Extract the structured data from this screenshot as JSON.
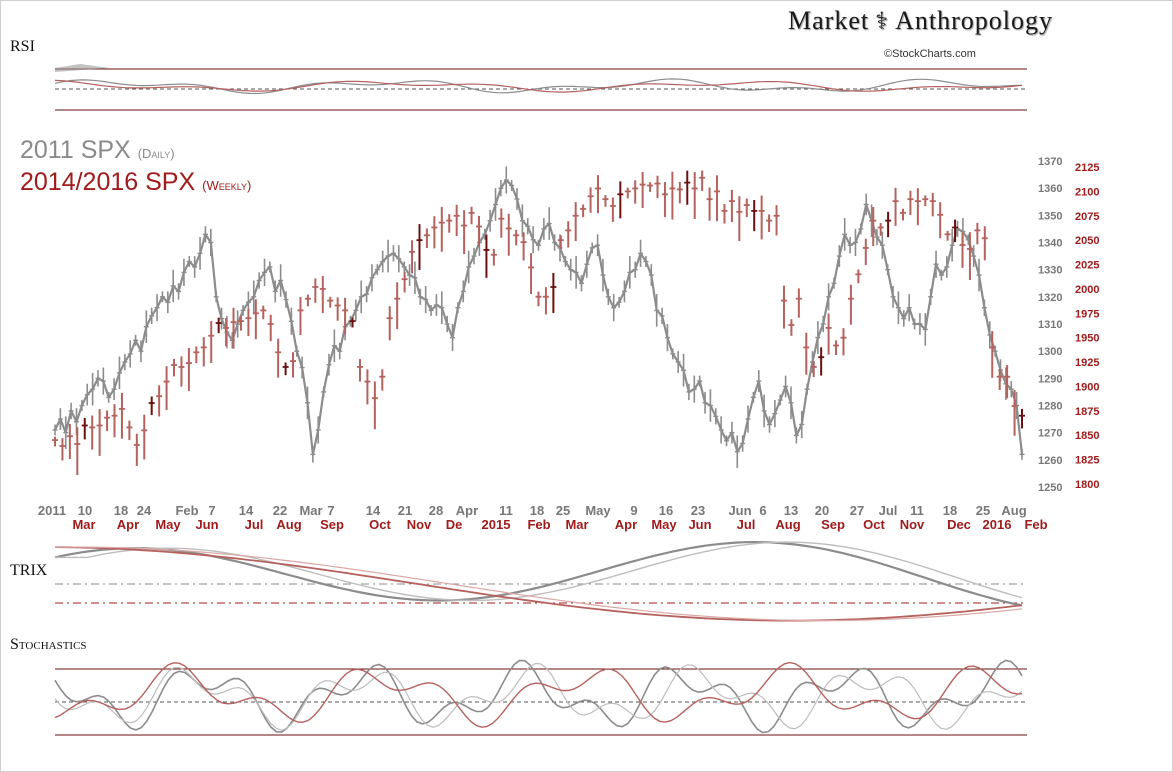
{
  "header": {
    "brand_left": "Market",
    "brand_right": "Anthropology",
    "credit": "©StockCharts.com"
  },
  "panels": {
    "rsi": "RSI",
    "trix": "TRIX",
    "stochastics": "Stochastics"
  },
  "legend": {
    "series_2011": "2011 SPX",
    "series_2011_freq": "(Daily)",
    "series_2014": "2014/2016 SPX",
    "series_2014_freq": "(Weekly)"
  },
  "colors": {
    "gray": "#8c8c8c",
    "red": "#b5625e",
    "dark_red": "#6b1010",
    "axis_red": "#a01c1c"
  },
  "chart_data": {
    "type": "line",
    "y_left": {
      "label": "2011 SPX",
      "range": [
        1250,
        1370
      ],
      "ticks": [
        1370,
        1360,
        1350,
        1340,
        1330,
        1320,
        1310,
        1300,
        1290,
        1280,
        1270,
        1260,
        1250
      ]
    },
    "y_right": {
      "label": "2014/2016 SPX",
      "range": [
        1800,
        2125
      ],
      "ticks": [
        2125,
        2100,
        2075,
        2050,
        2025,
        2000,
        1975,
        1950,
        1925,
        1900,
        1875,
        1850,
        1825,
        1800
      ]
    },
    "x_top_labels": [
      "2011",
      "10",
      "18",
      "24",
      "Feb",
      "7",
      "14",
      "22",
      "Mar",
      "7",
      "14",
      "21",
      "28",
      "Apr",
      "11",
      "18",
      "25",
      "May",
      "9",
      "16",
      "23",
      "Jun",
      "6",
      "13",
      "20",
      "27",
      "Jul",
      "11",
      "18",
      "25",
      "Aug"
    ],
    "x_bottom_labels": [
      "Mar",
      "Apr",
      "May",
      "Jun",
      "Jul",
      "Aug",
      "Sep",
      "Oct",
      "Nov",
      "De",
      "2015",
      "Feb",
      "Mar",
      "Apr",
      "May",
      "Jun",
      "Jul",
      "Aug",
      "Sep",
      "Oct",
      "Nov",
      "Dec",
      "2016",
      "Feb"
    ],
    "series": [
      {
        "name": "2011 SPX (Daily)",
        "values": [
          1271,
          1275,
          1270,
          1278,
          1274,
          1280,
          1284,
          1286,
          1290,
          1289,
          1283,
          1286,
          1292,
          1296,
          1299,
          1304,
          1300,
          1309,
          1313,
          1316,
          1320,
          1318,
          1324,
          1322,
          1329,
          1333,
          1331,
          1336,
          1343,
          1340,
          1320,
          1312,
          1307,
          1304,
          1310,
          1315,
          1318,
          1320,
          1326,
          1329,
          1331,
          1322,
          1326,
          1319,
          1311,
          1300,
          1294,
          1281,
          1262,
          1271,
          1285,
          1295,
          1302,
          1300,
          1309,
          1311,
          1315,
          1320,
          1321,
          1327,
          1330,
          1333,
          1335,
          1336,
          1334,
          1331,
          1328,
          1327,
          1320,
          1319,
          1315,
          1317,
          1316,
          1310,
          1305,
          1316,
          1322,
          1331,
          1335,
          1340,
          1343,
          1348,
          1354,
          1360,
          1363,
          1361,
          1356,
          1348,
          1346,
          1341,
          1339,
          1345,
          1347,
          1340,
          1338,
          1333,
          1330,
          1329,
          1325,
          1332,
          1338,
          1339,
          1328,
          1320,
          1316,
          1318,
          1322,
          1329,
          1330,
          1336,
          1333,
          1328,
          1315,
          1313,
          1305,
          1299,
          1296,
          1293,
          1285,
          1286,
          1289,
          1281,
          1280,
          1276,
          1271,
          1267,
          1270,
          1263,
          1266,
          1275,
          1283,
          1289,
          1278,
          1273,
          1277,
          1282,
          1287,
          1281,
          1269,
          1273,
          1286,
          1296,
          1305,
          1310,
          1320,
          1325,
          1335,
          1343,
          1339,
          1340,
          1345,
          1354,
          1348,
          1342,
          1339,
          1330,
          1320,
          1316,
          1312,
          1316,
          1310,
          1310,
          1308,
          1320,
          1332,
          1328,
          1331,
          1339,
          1345,
          1344,
          1341,
          1335,
          1328,
          1316,
          1306,
          1300,
          1293,
          1288,
          1286,
          1280,
          1262
        ]
      },
      {
        "name": "2014/2016 SPX (Weekly)",
        "values": [
          1845,
          1839,
          1849,
          1841,
          1860,
          1858,
          1860,
          1868,
          1870,
          1877,
          1858,
          1840,
          1855,
          1883,
          1890,
          1905,
          1922,
          1920,
          1924,
          1935,
          1940,
          1952,
          1965,
          1960,
          1966,
          1967,
          1970,
          1975,
          1978,
          1964,
          1935,
          1920,
          1926,
          1978,
          1990,
          2002,
          2000,
          1988,
          1983,
          1978,
          1967,
          1920,
          1905,
          1888,
          1910,
          1970,
          1990,
          2010,
          2038,
          2050,
          2055,
          2063,
          2068,
          2070,
          2075,
          2065,
          2078,
          2064,
          2040,
          2035,
          2072,
          2062,
          2055,
          2048,
          2022,
          1992,
          1992,
          2002,
          2050,
          2060,
          2075,
          2082,
          2095,
          2103,
          2092,
          2085,
          2097,
          2100,
          2103,
          2107,
          2106,
          2108,
          2097,
          2103,
          2102,
          2109,
          2103,
          2114,
          2092,
          2100,
          2080,
          2090,
          2079,
          2086,
          2080,
          2080,
          2070,
          2075,
          1988,
          1963,
          1990,
          1940,
          1920,
          1930,
          1960,
          1942,
          1950,
          1990,
          2015,
          2042,
          2070,
          2063,
          2070,
          2090,
          2078,
          2092,
          2090,
          2092,
          2090,
          2076,
          2056,
          2063,
          2045,
          2041,
          2060,
          2052,
          1940,
          1910,
          1910,
          1880,
          1870
        ]
      }
    ],
    "right_panels": [
      "RSI",
      "TRIX",
      "Stochastics"
    ]
  }
}
